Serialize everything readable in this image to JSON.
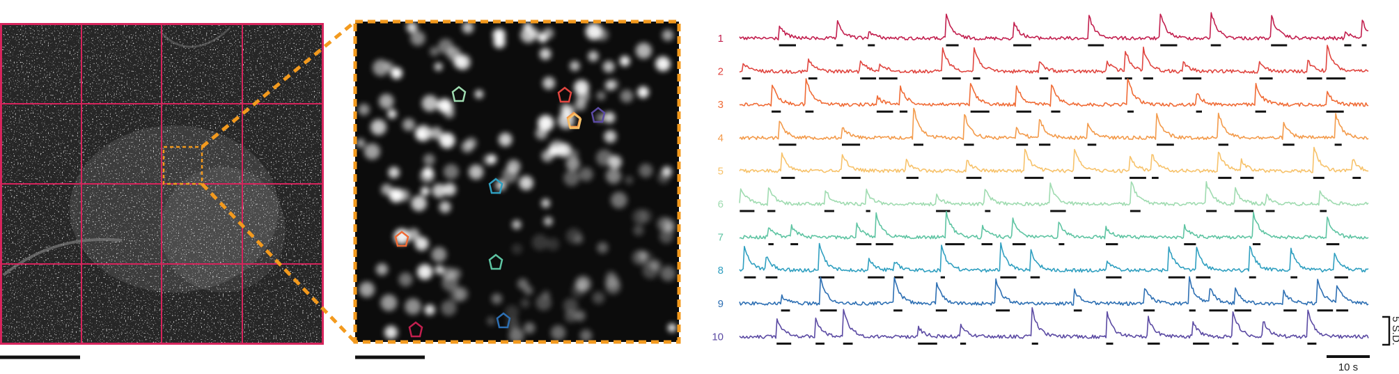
{
  "colors": {
    "grid": "#d6245c",
    "zoom": "#f39a1e",
    "scalebar": "#111111"
  },
  "traces": [
    {
      "label": "1",
      "color": "#c21f4e"
    },
    {
      "label": "2",
      "color": "#e0453f"
    },
    {
      "label": "3",
      "color": "#f06b35"
    },
    {
      "label": "4",
      "color": "#f39a4a"
    },
    {
      "label": "5",
      "color": "#f7c26a"
    },
    {
      "label": "6",
      "color": "#9fdbb0"
    },
    {
      "label": "7",
      "color": "#5ec4a2"
    },
    {
      "label": "8",
      "color": "#2f9fc0"
    },
    {
      "label": "9",
      "color": "#2d6fb3"
    },
    {
      "label": "10",
      "color": "#5b4aa3"
    }
  ],
  "scalebars": {
    "amplitude_label": "5 S.D.",
    "time_label": "10 s"
  }
}
